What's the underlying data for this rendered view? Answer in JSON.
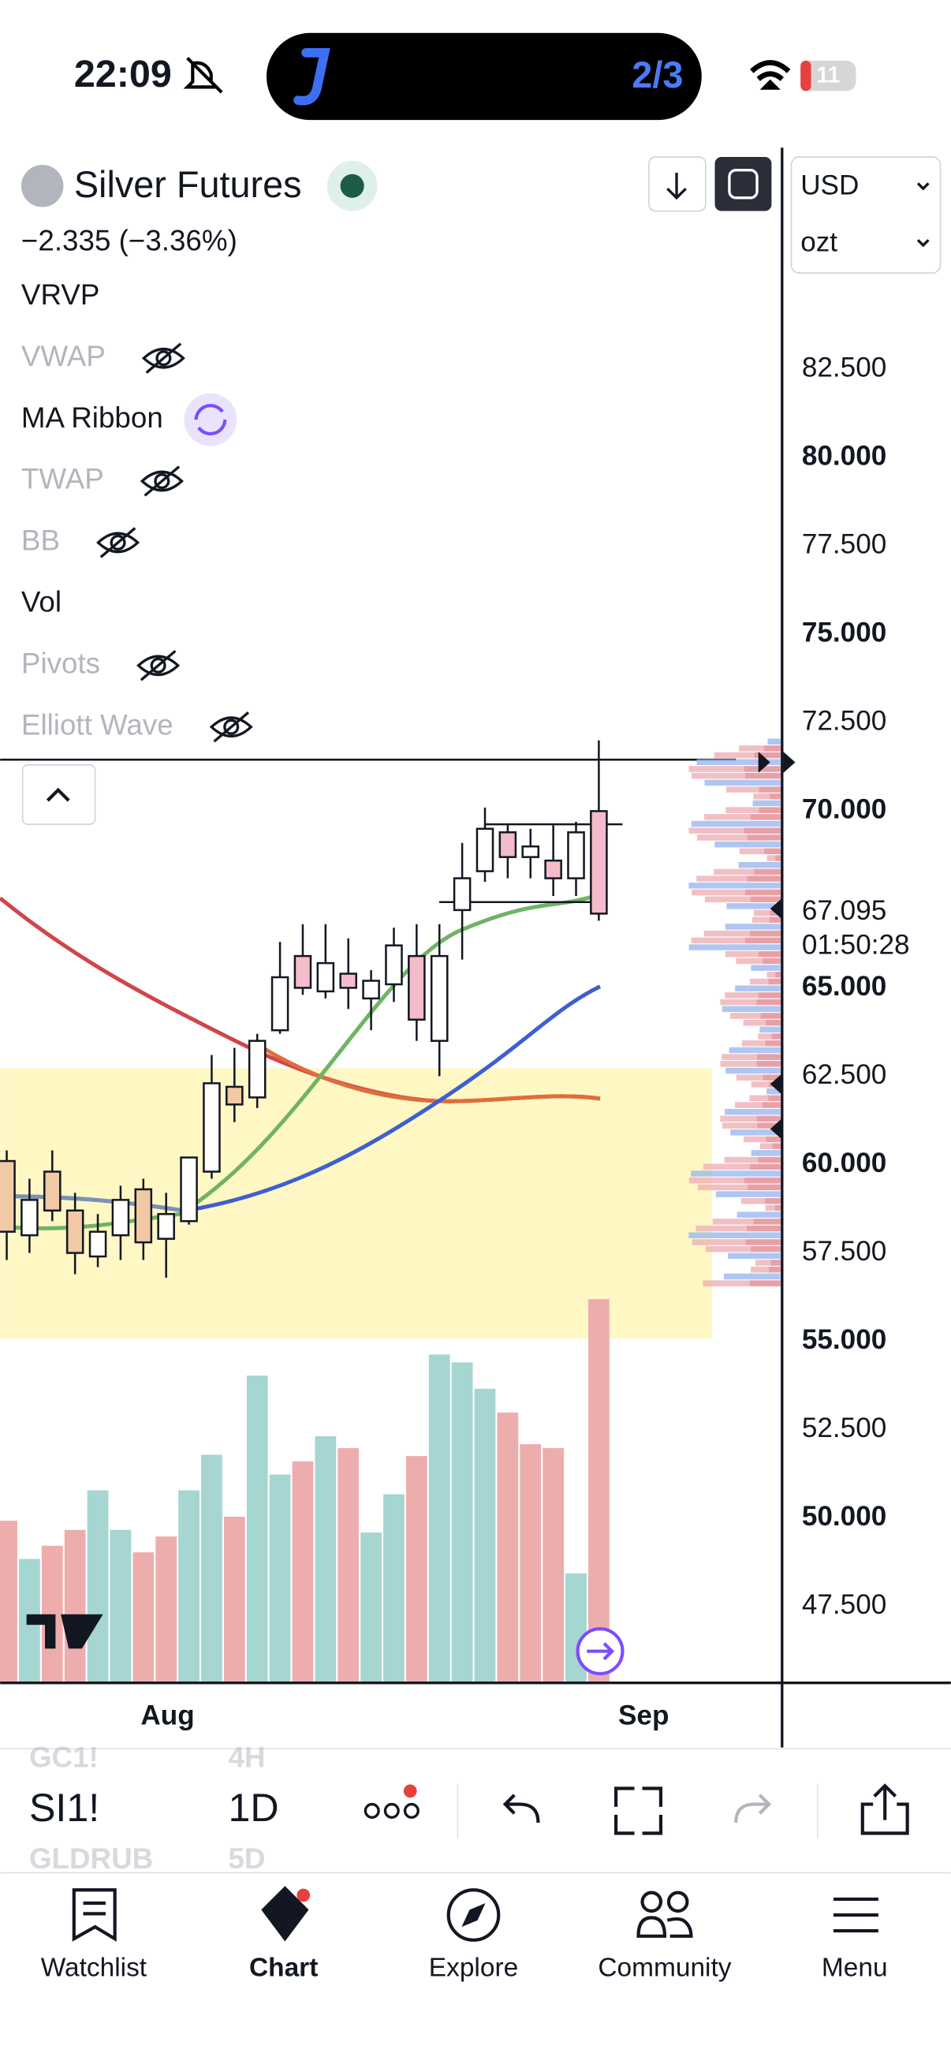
{
  "status_bar": {
    "time": "22:09",
    "island_text": "2/3",
    "battery": "11"
  },
  "header": {
    "symbol": "Silver Futures",
    "change": "−2.335 (−3.36%)",
    "currency": "USD",
    "unit": "ozt"
  },
  "indicators": [
    {
      "label": "VRVP",
      "hidden": false
    },
    {
      "label": "VWAP",
      "hidden": true
    },
    {
      "label": "MA Ribbon",
      "hidden": false
    },
    {
      "label": "TWAP",
      "hidden": true
    },
    {
      "label": "BB",
      "hidden": true
    },
    {
      "label": "Vol",
      "hidden": false
    },
    {
      "label": "Pivots",
      "hidden": true
    },
    {
      "label": "Elliott Wave",
      "hidden": true
    }
  ],
  "price_axis": {
    "ticks": [
      {
        "value": 82.5,
        "label": "82.500"
      },
      {
        "value": 80,
        "label": "80.000"
      },
      {
        "value": 77.5,
        "label": "77.500"
      },
      {
        "value": 75,
        "label": "75.000"
      },
      {
        "value": 72.5,
        "label": "72.500"
      },
      {
        "value": 70,
        "label": "70.000"
      },
      {
        "value": 65,
        "label": "65.000"
      },
      {
        "value": 62.5,
        "label": "62.500"
      },
      {
        "value": 60,
        "label": "60.000"
      },
      {
        "value": 57.5,
        "label": "57.500"
      },
      {
        "value": 55,
        "label": "55.000"
      },
      {
        "value": 52.5,
        "label": "52.500"
      },
      {
        "value": 50,
        "label": "50.000"
      },
      {
        "value": 47.5,
        "label": "47.500"
      }
    ],
    "current_price": {
      "value": 67.095,
      "label": "67.095"
    },
    "countdown": "01:50:28"
  },
  "candles": [
    {
      "open": 60.1,
      "high": 60.4,
      "low": 57.3,
      "close": 58.1
    },
    {
      "open": 58.0,
      "high": 59.6,
      "low": 57.5,
      "close": 59.0
    },
    {
      "open": 59.8,
      "high": 60.4,
      "low": 58.4,
      "close": 58.7
    },
    {
      "open": 58.7,
      "high": 59.2,
      "low": 56.9,
      "close": 57.5
    },
    {
      "open": 57.4,
      "high": 58.6,
      "low": 57.1,
      "close": 58.1
    },
    {
      "open": 58.0,
      "high": 59.4,
      "low": 57.3,
      "close": 59.0
    },
    {
      "open": 59.3,
      "high": 59.6,
      "low": 57.3,
      "close": 57.8
    },
    {
      "open": 57.9,
      "high": 59.2,
      "low": 56.8,
      "close": 58.6
    },
    {
      "open": 58.4,
      "high": 60.2,
      "low": 58.3,
      "close": 60.2
    },
    {
      "open": 59.8,
      "high": 63.1,
      "low": 59.6,
      "close": 62.3
    },
    {
      "open": 62.2,
      "high": 63.3,
      "low": 61.2,
      "close": 61.7
    },
    {
      "open": 61.9,
      "high": 63.7,
      "low": 61.6,
      "close": 63.5
    },
    {
      "open": 63.8,
      "high": 66.3,
      "low": 63.7,
      "close": 65.3
    },
    {
      "open": 65.9,
      "high": 66.8,
      "low": 64.8,
      "close": 65.0
    },
    {
      "open": 64.9,
      "high": 66.8,
      "low": 64.7,
      "close": 65.7
    },
    {
      "open": 65.4,
      "high": 66.4,
      "low": 64.4,
      "close": 65.0
    },
    {
      "open": 64.7,
      "high": 65.5,
      "low": 63.8,
      "close": 65.2
    },
    {
      "open": 65.1,
      "high": 66.7,
      "low": 64.6,
      "close": 66.2
    },
    {
      "open": 65.9,
      "high": 66.8,
      "low": 63.5,
      "close": 64.1
    },
    {
      "open": 63.5,
      "high": 66.8,
      "low": 62.5,
      "close": 65.9
    },
    {
      "open": 67.2,
      "high": 69.1,
      "low": 65.8,
      "close": 68.1
    },
    {
      "open": 68.3,
      "high": 70.1,
      "low": 68.0,
      "close": 69.5
    },
    {
      "open": 69.4,
      "high": 69.6,
      "low": 68.1,
      "close": 68.7
    },
    {
      "open": 68.7,
      "high": 69.5,
      "low": 68.1,
      "close": 69.0
    },
    {
      "open": 68.6,
      "high": 69.6,
      "low": 67.6,
      "close": 68.1
    },
    {
      "open": 68.1,
      "high": 69.7,
      "low": 67.6,
      "close": 69.4
    },
    {
      "open": 70.0,
      "high": 72.0,
      "low": 66.9,
      "close": 67.1
    }
  ],
  "time_axis": [
    "Aug",
    "Sep"
  ],
  "toolbar": {
    "symbol": "SI1!",
    "interval": "1D",
    "prev_symbol": "GC1!",
    "prev_interval": "4H",
    "next_symbol": "GLDRUB",
    "next_interval": "5D"
  },
  "nav": [
    "Watchlist",
    "Chart",
    "Explore",
    "Community",
    "Menu"
  ]
}
